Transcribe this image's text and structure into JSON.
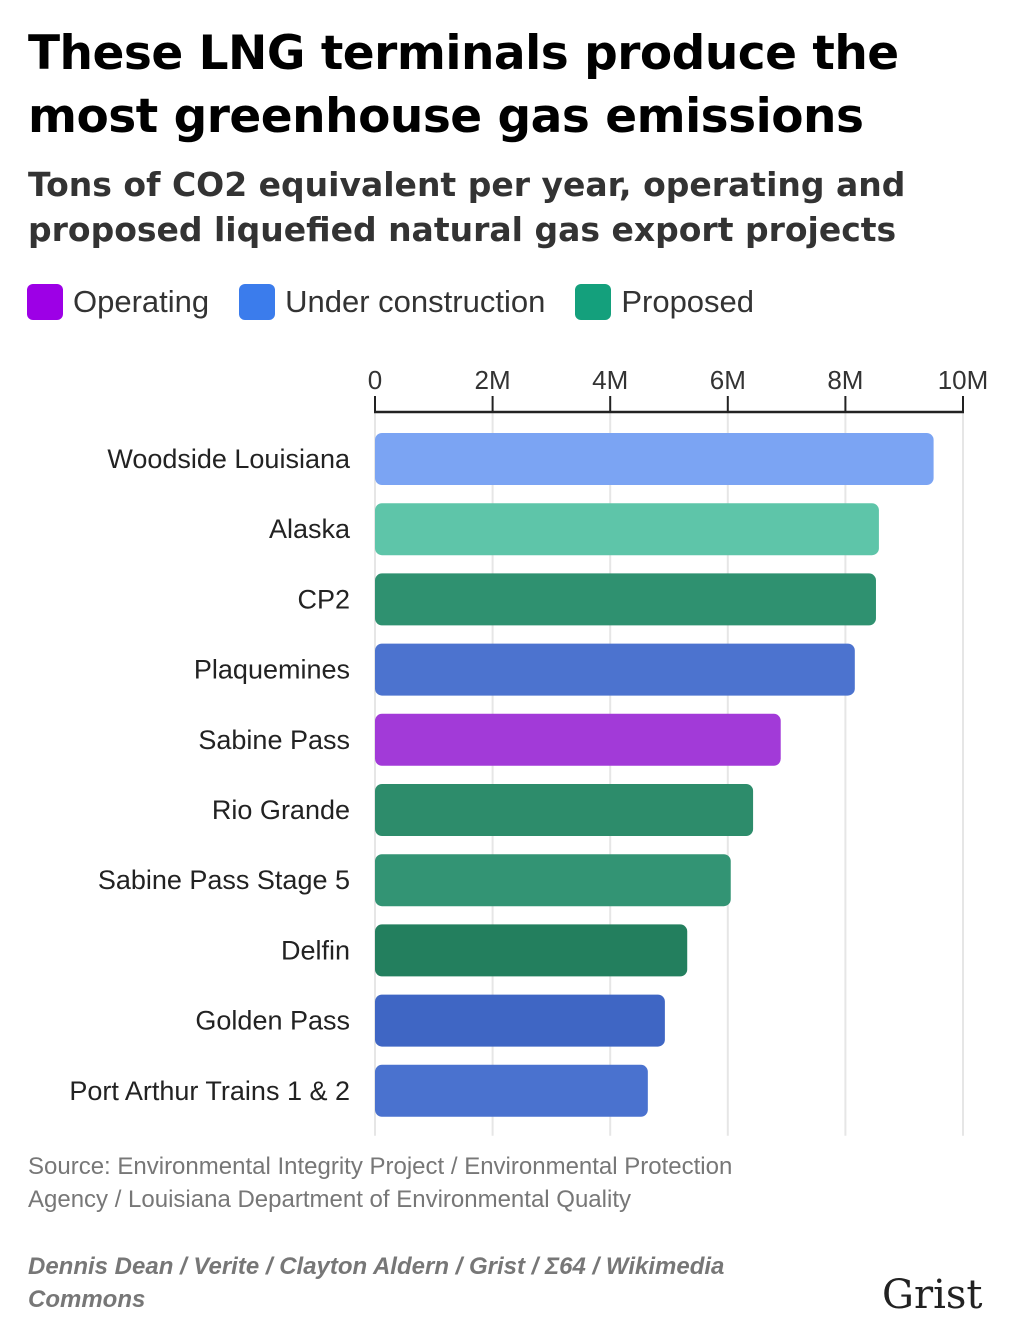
{
  "title": "These LNG terminals produce the most greenhouse gas emissions",
  "subtitle": "Tons of CO2 equivalent per year, operating and proposed liquefied natural gas export projects",
  "legend": [
    {
      "label": "Operating",
      "color": "#9d00e6"
    },
    {
      "label": "Under construction",
      "color": "#3b7cec"
    },
    {
      "label": "Proposed",
      "color": "#14a07c"
    }
  ],
  "source": "Source: Environmental Integrity Project / Environmental Protection Agency / Louisiana Department of Environmental Quality",
  "credit": "Dennis Dean / Verite / Clayton Aldern / Grist / Σ64 / Wikimedia Commons",
  "logo": "Grist",
  "chart_data": {
    "type": "bar",
    "orientation": "horizontal",
    "categories": [
      "Woodside Louisiana",
      "Alaska",
      "CP2",
      "Plaquemines",
      "Sabine Pass",
      "Rio Grande",
      "Sabine Pass Stage 5",
      "Delfin",
      "Golden Pass",
      "Port Arthur Trains 1 & 2"
    ],
    "values": [
      9500000,
      8570000,
      8520000,
      8160000,
      6900000,
      6430000,
      6050000,
      5310000,
      4930000,
      4640000
    ],
    "status": [
      "Under construction",
      "Proposed",
      "Proposed",
      "Under construction",
      "Operating",
      "Proposed",
      "Proposed",
      "Proposed",
      "Under construction",
      "Under construction"
    ],
    "bar_colors": [
      "#7ba4f3",
      "#5ec5a9",
      "#2f9170",
      "#4c73cf",
      "#a23ad8",
      "#2d8c6b",
      "#339474",
      "#237f5e",
      "#3f66c4",
      "#4a72cf"
    ],
    "xlim": [
      0,
      10000000
    ],
    "x_ticks": [
      "0",
      "2M",
      "4M",
      "6M",
      "8M",
      "10M"
    ],
    "x_tick_values": [
      0,
      2000000,
      4000000,
      6000000,
      8000000,
      10000000
    ],
    "grid": true,
    "xlabel": "",
    "ylabel": ""
  }
}
